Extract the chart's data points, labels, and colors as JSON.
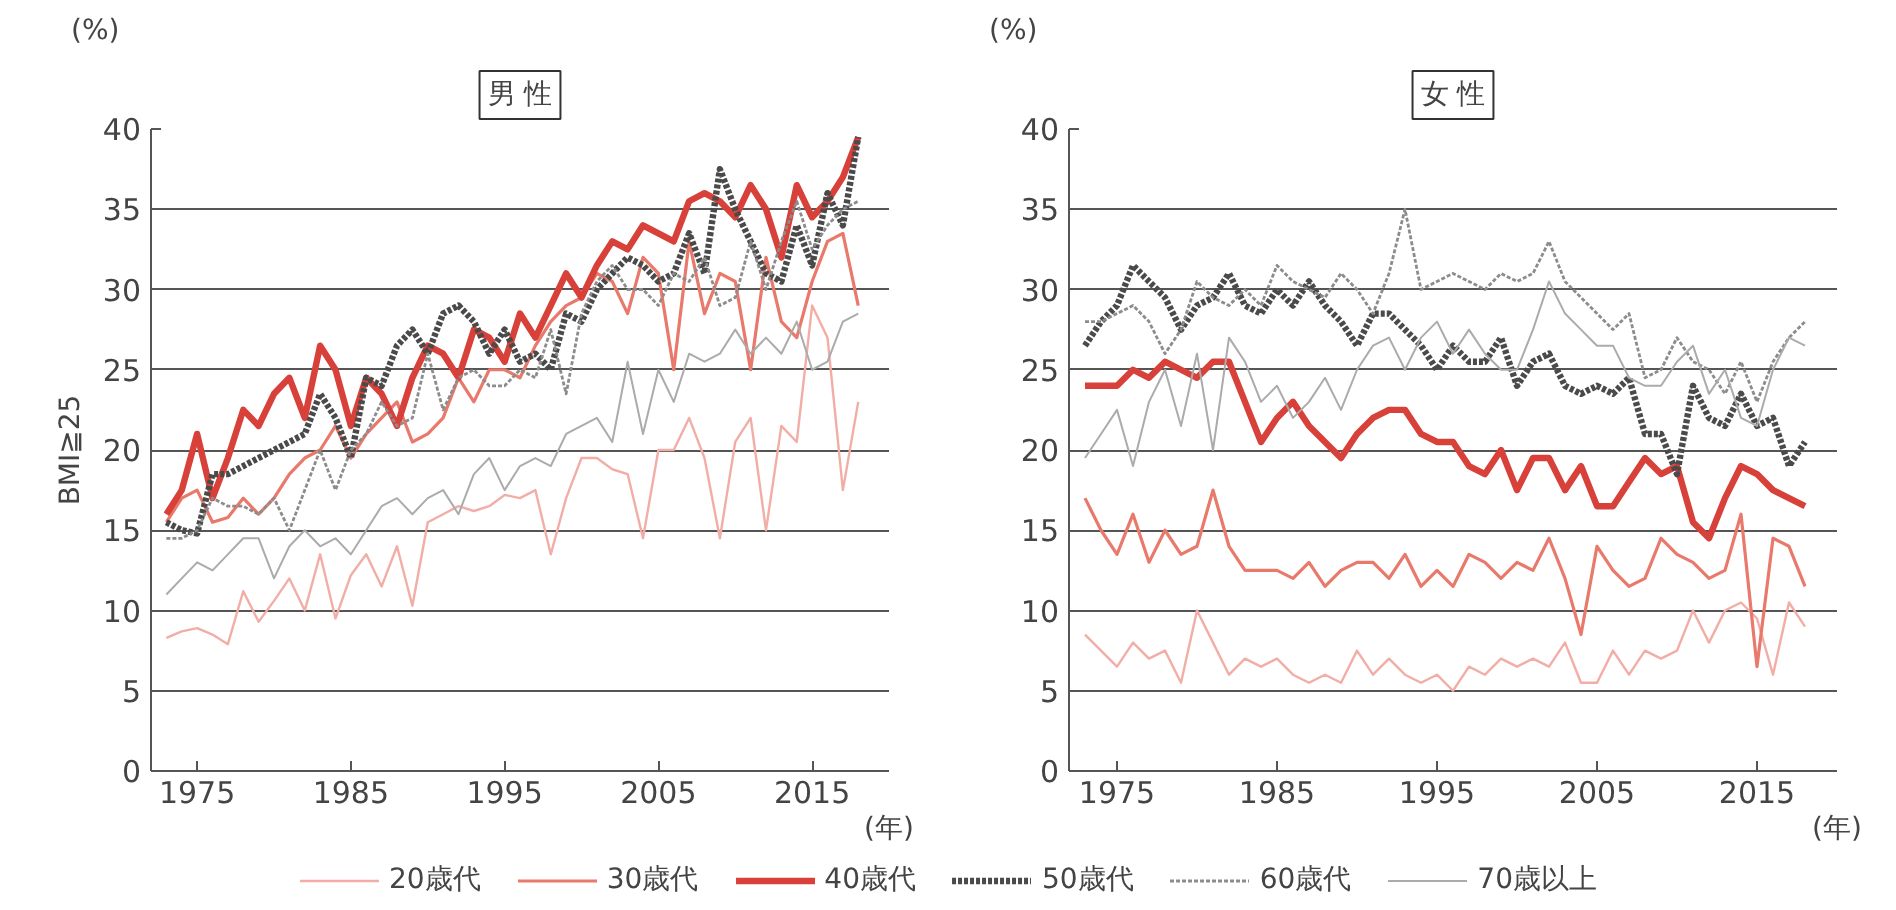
{
  "chart_data": [
    {
      "type": "line",
      "title": "男 性",
      "ylabel": "BMI≧25",
      "xlabel": "(年)",
      "annotations": [
        "(%)"
      ],
      "x": [
        1973,
        1974,
        1975,
        1976,
        1977,
        1978,
        1979,
        1980,
        1981,
        1982,
        1983,
        1984,
        1985,
        1986,
        1987,
        1988,
        1989,
        1990,
        1991,
        1992,
        1993,
        1994,
        1995,
        1996,
        1997,
        1998,
        1999,
        2000,
        2001,
        2002,
        2003,
        2004,
        2005,
        2006,
        2007,
        2008,
        2009,
        2010,
        2011,
        2012,
        2013,
        2014,
        2015,
        2016,
        2017,
        2018
      ],
      "xlim": [
        1972,
        2020
      ],
      "xticks": [
        1975,
        1985,
        1995,
        2005,
        2015
      ],
      "ylim": [
        0,
        40
      ],
      "yticks": [
        0,
        5,
        10,
        15,
        20,
        25,
        30,
        35,
        40
      ],
      "grid": "y",
      "legend": "bottom",
      "series": [
        {
          "name": "20歳代",
          "color": "#f2aea6",
          "line_style": "solid",
          "values": [
            8.3,
            8.7,
            8.9,
            8.5,
            7.9,
            11.2,
            9.3,
            10.6,
            12.0,
            10.0,
            13.5,
            9.5,
            12.2,
            13.5,
            11.5,
            14.0,
            10.3,
            15.5,
            16.0,
            16.5,
            16.2,
            16.5,
            17.2,
            17.0,
            17.5,
            13.5,
            17.0,
            19.5,
            19.5,
            18.8,
            18.5,
            14.5,
            20.0,
            20.0,
            22.0,
            19.5,
            14.5,
            20.5,
            22.0,
            15.0,
            21.5,
            20.5,
            29.0,
            27.0,
            17.5,
            23.0
          ]
        },
        {
          "name": "30歳代",
          "color": "#e8796b",
          "line_style": "solid",
          "values": [
            15.5,
            17.0,
            17.5,
            15.5,
            15.8,
            17.0,
            16.0,
            17.0,
            18.5,
            19.5,
            20.0,
            21.5,
            19.5,
            21.0,
            22.0,
            23.0,
            20.5,
            21.0,
            22.0,
            24.5,
            23.0,
            25.0,
            25.0,
            24.5,
            26.5,
            28.0,
            29.0,
            29.5,
            31.0,
            30.5,
            28.5,
            32.0,
            31.0,
            25.0,
            33.0,
            28.5,
            31.0,
            30.5,
            25.0,
            32.0,
            28.0,
            27.0,
            30.5,
            33.0,
            33.5,
            29.0
          ]
        },
        {
          "name": "40歳代",
          "color": "#d8403a",
          "line_style": "solid",
          "values": [
            16.0,
            17.5,
            21.0,
            17.0,
            19.5,
            22.5,
            21.5,
            23.5,
            24.5,
            22.0,
            26.5,
            25.0,
            21.5,
            24.5,
            23.5,
            21.5,
            24.5,
            26.5,
            26.0,
            24.5,
            27.5,
            27.0,
            25.5,
            28.5,
            27.0,
            29.0,
            31.0,
            29.5,
            31.5,
            33.0,
            32.5,
            34.0,
            33.5,
            33.0,
            35.5,
            36.0,
            35.5,
            34.5,
            36.5,
            35.0,
            32.0,
            36.5,
            34.5,
            35.5,
            37.0,
            39.5
          ]
        },
        {
          "name": "50歳代",
          "color": "#4a4a4a",
          "line_style": "dotted",
          "values": [
            15.5,
            15.0,
            14.8,
            18.5,
            18.5,
            19.0,
            19.5,
            20.0,
            20.5,
            21.0,
            23.5,
            22.0,
            19.5,
            24.5,
            24.0,
            26.5,
            27.5,
            26.0,
            28.5,
            29.0,
            28.0,
            26.0,
            27.5,
            25.5,
            26.0,
            25.0,
            28.5,
            28.0,
            30.0,
            31.0,
            32.0,
            31.5,
            30.5,
            31.0,
            33.5,
            31.0,
            37.5,
            35.0,
            33.0,
            31.0,
            30.5,
            34.0,
            31.5,
            36.0,
            34.0,
            39.5
          ]
        },
        {
          "name": "60歳代",
          "color": "#8c8c8c",
          "line_style": "dotted",
          "values": [
            14.5,
            14.5,
            15.0,
            17.0,
            16.5,
            16.5,
            16.0,
            17.0,
            15.0,
            17.5,
            20.0,
            17.5,
            20.0,
            21.0,
            23.0,
            21.5,
            22.0,
            26.0,
            22.5,
            24.5,
            25.0,
            24.0,
            24.0,
            25.0,
            24.5,
            27.5,
            23.5,
            28.5,
            30.5,
            31.5,
            30.0,
            30.0,
            29.0,
            31.0,
            30.5,
            32.0,
            29.0,
            29.5,
            33.0,
            30.0,
            33.0,
            35.5,
            32.5,
            34.0,
            35.0,
            35.5
          ]
        },
        {
          "name": "70歳以上",
          "color": "#ababab",
          "line_style": "solid",
          "values": [
            11.0,
            12.0,
            13.0,
            12.5,
            13.5,
            14.5,
            14.5,
            12.0,
            14.0,
            15.0,
            14.0,
            14.5,
            13.5,
            15.0,
            16.5,
            17.0,
            16.0,
            17.0,
            17.5,
            16.0,
            18.5,
            19.5,
            17.5,
            19.0,
            19.5,
            19.0,
            21.0,
            21.5,
            22.0,
            20.5,
            25.5,
            21.0,
            25.0,
            23.0,
            26.0,
            25.5,
            26.0,
            27.5,
            26.0,
            27.0,
            26.0,
            28.0,
            25.0,
            25.5,
            28.0,
            28.5
          ]
        }
      ]
    },
    {
      "type": "line",
      "title": "女 性",
      "xlabel": "(年)",
      "annotations": [
        "(%)"
      ],
      "x": [
        1973,
        1974,
        1975,
        1976,
        1977,
        1978,
        1979,
        1980,
        1981,
        1982,
        1983,
        1984,
        1985,
        1986,
        1987,
        1988,
        1989,
        1990,
        1991,
        1992,
        1993,
        1994,
        1995,
        1996,
        1997,
        1998,
        1999,
        2000,
        2001,
        2002,
        2003,
        2004,
        2005,
        2006,
        2007,
        2008,
        2009,
        2010,
        2011,
        2012,
        2013,
        2014,
        2015,
        2016,
        2017,
        2018
      ],
      "xlim": [
        1972,
        2020
      ],
      "xticks": [
        1975,
        1985,
        1995,
        2005,
        2015
      ],
      "ylim": [
        0,
        40
      ],
      "yticks": [
        0,
        5,
        10,
        15,
        20,
        25,
        30,
        35,
        40
      ],
      "grid": "y",
      "series": [
        {
          "color": "#f2aea6",
          "line_style": "solid",
          "values": [
            8.5,
            7.5,
            6.5,
            8.0,
            7.0,
            7.5,
            5.5,
            10.0,
            8.0,
            6.0,
            7.0,
            6.5,
            7.0,
            6.0,
            5.5,
            6.0,
            5.5,
            7.5,
            6.0,
            7.0,
            6.0,
            5.5,
            6.0,
            5.0,
            6.5,
            6.0,
            7.0,
            6.5,
            7.0,
            6.5,
            8.0,
            5.5,
            5.5,
            7.5,
            6.0,
            7.5,
            7.0,
            7.5,
            10.0,
            8.0,
            10.0,
            10.5,
            9.5,
            6.0,
            10.5,
            9.0
          ]
        },
        {
          "color": "#e8796b",
          "line_style": "solid",
          "values": [
            17.0,
            15.0,
            13.5,
            16.0,
            13.0,
            15.0,
            13.5,
            14.0,
            17.5,
            14.0,
            12.5,
            12.5,
            12.5,
            12.0,
            13.0,
            11.5,
            12.5,
            13.0,
            13.0,
            12.0,
            13.5,
            11.5,
            12.5,
            11.5,
            13.5,
            13.0,
            12.0,
            13.0,
            12.5,
            14.5,
            12.0,
            8.5,
            14.0,
            12.5,
            11.5,
            12.0,
            14.5,
            13.5,
            13.0,
            12.0,
            12.5,
            16.0,
            6.5,
            14.5,
            14.0,
            11.5
          ]
        },
        {
          "color": "#d8403a",
          "line_style": "solid",
          "values": [
            24.0,
            24.0,
            24.0,
            25.0,
            24.5,
            25.5,
            25.0,
            24.5,
            25.5,
            25.5,
            23.0,
            20.5,
            22.0,
            23.0,
            21.5,
            20.5,
            19.5,
            21.0,
            22.0,
            22.5,
            22.5,
            21.0,
            20.5,
            20.5,
            19.0,
            18.5,
            20.0,
            17.5,
            19.5,
            19.5,
            17.5,
            19.0,
            16.5,
            16.5,
            18.0,
            19.5,
            18.5,
            19.0,
            15.5,
            14.5,
            17.0,
            19.0,
            18.5,
            17.5,
            17.0,
            16.5
          ]
        },
        {
          "color": "#4a4a4a",
          "line_style": "dotted",
          "values": [
            26.5,
            28.0,
            29.0,
            31.5,
            30.5,
            29.5,
            27.5,
            29.0,
            29.5,
            31.0,
            29.0,
            28.5,
            30.0,
            29.0,
            30.5,
            29.0,
            28.0,
            26.5,
            28.5,
            28.5,
            27.5,
            26.5,
            25.0,
            26.5,
            25.5,
            25.5,
            27.0,
            24.0,
            25.5,
            26.0,
            24.0,
            23.5,
            24.0,
            23.5,
            24.5,
            21.0,
            21.0,
            18.5,
            24.0,
            22.0,
            21.5,
            23.5,
            21.5,
            22.0,
            19.0,
            20.5
          ]
        },
        {
          "color": "#8c8c8c",
          "line_style": "dotted",
          "values": [
            28.0,
            28.0,
            28.5,
            29.0,
            28.0,
            26.0,
            27.5,
            30.5,
            29.5,
            29.0,
            30.0,
            29.0,
            31.5,
            30.5,
            30.0,
            29.5,
            31.0,
            30.0,
            28.5,
            31.0,
            35.0,
            30.0,
            30.5,
            31.0,
            30.5,
            30.0,
            31.0,
            30.5,
            31.0,
            33.0,
            30.5,
            29.5,
            28.5,
            27.5,
            28.5,
            24.5,
            25.0,
            27.0,
            25.5,
            25.0,
            23.5,
            25.5,
            23.0,
            25.5,
            27.0,
            28.0
          ]
        },
        {
          "color": "#ababab",
          "line_style": "solid",
          "values": [
            19.5,
            21.0,
            22.5,
            19.0,
            23.0,
            25.0,
            21.5,
            26.0,
            20.0,
            27.0,
            25.5,
            23.0,
            24.0,
            22.0,
            23.0,
            24.5,
            22.5,
            25.0,
            26.5,
            27.0,
            25.0,
            27.0,
            28.0,
            26.0,
            27.5,
            26.0,
            25.0,
            25.0,
            27.5,
            30.5,
            28.5,
            27.5,
            26.5,
            26.5,
            24.5,
            24.0,
            24.0,
            25.5,
            26.5,
            23.5,
            25.0,
            22.0,
            21.5,
            25.0,
            27.0,
            26.5
          ]
        }
      ]
    }
  ]
}
